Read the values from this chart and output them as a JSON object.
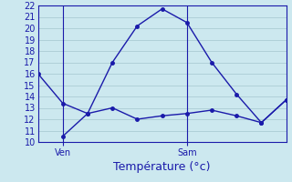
{
  "xlabel": "Température (°c)",
  "ylim": [
    10,
    22
  ],
  "yticks": [
    10,
    11,
    12,
    13,
    14,
    15,
    16,
    17,
    18,
    19,
    20,
    21,
    22
  ],
  "background_color": "#cce8ef",
  "grid_color": "#b0d0d8",
  "line_color": "#1a1aaa",
  "spine_color": "#1a1aaa",
  "ven_x": 1,
  "sam_x": 6,
  "x_min": 0,
  "x_max": 10,
  "series1_x": [
    0,
    1,
    2,
    3,
    4,
    5,
    6,
    7,
    8,
    9,
    10
  ],
  "series1_y": [
    16.0,
    13.4,
    12.5,
    17.0,
    20.2,
    21.7,
    20.5,
    17.0,
    14.2,
    11.7,
    13.7
  ],
  "series2_x": [
    1,
    2,
    3,
    4,
    5,
    6,
    7,
    8,
    9,
    10
  ],
  "series2_y": [
    10.5,
    12.5,
    13.0,
    12.0,
    12.3,
    12.5,
    12.8,
    12.3,
    11.7,
    13.7
  ],
  "xtick_positions": [
    1,
    6
  ],
  "xtick_labels": [
    "Ven",
    "Sam"
  ],
  "xlabel_fontsize": 9,
  "ytick_fontsize": 7,
  "xtick_fontsize": 7
}
